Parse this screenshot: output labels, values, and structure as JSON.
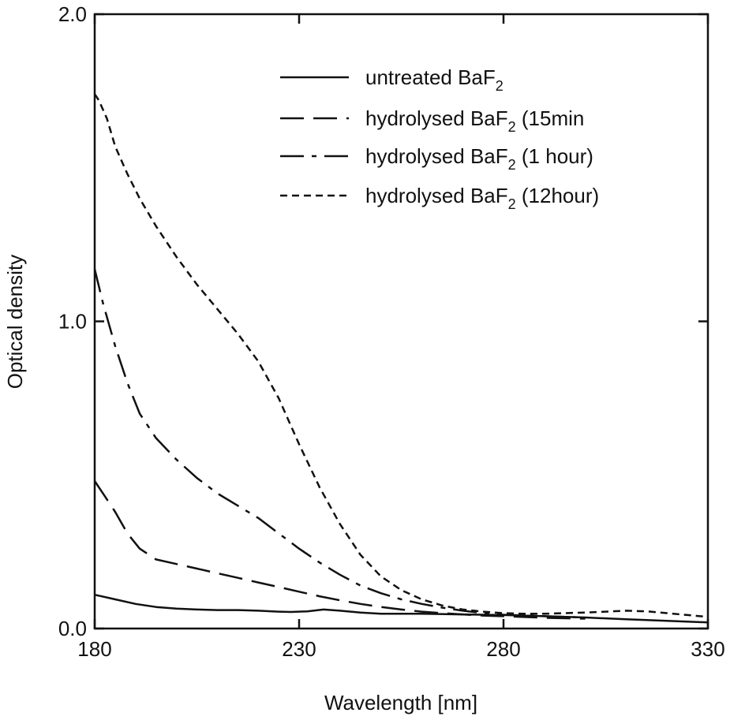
{
  "chart_data": {
    "type": "line",
    "xlabel": "Wavelength [nm]",
    "ylabel": "Optical density",
    "xlim": [
      180,
      330
    ],
    "ylim": [
      0.0,
      2.0
    ],
    "xticks": [
      "180",
      "230",
      "280",
      "330"
    ],
    "yticks": [
      "0.0",
      "1.0",
      "2.0"
    ],
    "grid": false,
    "legend_position": "top-right",
    "series": [
      {
        "name": "untreated BaF2",
        "legend_main": "untreated BaF",
        "legend_sub": "2",
        "legend_tail": "",
        "dash": "solid",
        "points": [
          [
            180,
            0.11
          ],
          [
            185,
            0.095
          ],
          [
            190,
            0.08
          ],
          [
            195,
            0.07
          ],
          [
            200,
            0.065
          ],
          [
            205,
            0.062
          ],
          [
            210,
            0.06
          ],
          [
            215,
            0.06
          ],
          [
            220,
            0.058
          ],
          [
            225,
            0.055
          ],
          [
            228,
            0.054
          ],
          [
            232,
            0.056
          ],
          [
            236,
            0.062
          ],
          [
            240,
            0.058
          ],
          [
            245,
            0.052
          ],
          [
            250,
            0.048
          ],
          [
            255,
            0.048
          ],
          [
            260,
            0.048
          ],
          [
            270,
            0.046
          ],
          [
            280,
            0.044
          ],
          [
            290,
            0.04
          ],
          [
            300,
            0.036
          ],
          [
            310,
            0.03
          ],
          [
            320,
            0.025
          ],
          [
            330,
            0.02
          ]
        ]
      },
      {
        "name": "hydrolysed BaF2 (15min",
        "legend_main": "hydrolysed BaF",
        "legend_sub": "2",
        "legend_tail": " (15min",
        "dash": "long-dash",
        "points": [
          [
            180,
            0.48
          ],
          [
            182,
            0.44
          ],
          [
            185,
            0.38
          ],
          [
            188,
            0.31
          ],
          [
            191,
            0.26
          ],
          [
            195,
            0.225
          ],
          [
            200,
            0.21
          ],
          [
            205,
            0.195
          ],
          [
            210,
            0.18
          ],
          [
            215,
            0.165
          ],
          [
            220,
            0.15
          ],
          [
            225,
            0.135
          ],
          [
            230,
            0.12
          ],
          [
            235,
            0.105
          ],
          [
            240,
            0.092
          ],
          [
            245,
            0.08
          ],
          [
            250,
            0.07
          ],
          [
            255,
            0.062
          ],
          [
            260,
            0.055
          ],
          [
            265,
            0.05
          ],
          [
            270,
            0.046
          ],
          [
            275,
            0.042
          ],
          [
            280,
            0.04
          ],
          [
            290,
            0.035
          ],
          [
            300,
            0.032
          ]
        ]
      },
      {
        "name": "hydrolysed BaF2 (1 hour)",
        "legend_main": "hydrolysed BaF",
        "legend_sub": "2",
        "legend_tail": " (1 hour)",
        "dash": "dash-dot",
        "points": [
          [
            180,
            1.17
          ],
          [
            182,
            1.06
          ],
          [
            185,
            0.92
          ],
          [
            188,
            0.8
          ],
          [
            191,
            0.7
          ],
          [
            195,
            0.62
          ],
          [
            200,
            0.55
          ],
          [
            205,
            0.49
          ],
          [
            210,
            0.44
          ],
          [
            215,
            0.4
          ],
          [
            220,
            0.36
          ],
          [
            225,
            0.31
          ],
          [
            230,
            0.26
          ],
          [
            235,
            0.215
          ],
          [
            240,
            0.175
          ],
          [
            245,
            0.14
          ],
          [
            250,
            0.115
          ],
          [
            255,
            0.095
          ],
          [
            260,
            0.08
          ],
          [
            265,
            0.068
          ],
          [
            270,
            0.058
          ],
          [
            275,
            0.05
          ],
          [
            280,
            0.045
          ],
          [
            290,
            0.04
          ],
          [
            300,
            0.036
          ]
        ]
      },
      {
        "name": "hydrolysed BaF2 (12hour)",
        "legend_main": "hydrolysed BaF",
        "legend_sub": "2",
        "legend_tail": " (12hour)",
        "dash": "short-dash",
        "points": [
          [
            180,
            1.74
          ],
          [
            181,
            1.72
          ],
          [
            183,
            1.66
          ],
          [
            185,
            1.57
          ],
          [
            188,
            1.48
          ],
          [
            191,
            1.4
          ],
          [
            195,
            1.31
          ],
          [
            200,
            1.21
          ],
          [
            205,
            1.12
          ],
          [
            210,
            1.04
          ],
          [
            215,
            0.96
          ],
          [
            220,
            0.87
          ],
          [
            225,
            0.75
          ],
          [
            230,
            0.6
          ],
          [
            235,
            0.46
          ],
          [
            240,
            0.34
          ],
          [
            245,
            0.24
          ],
          [
            250,
            0.17
          ],
          [
            255,
            0.125
          ],
          [
            260,
            0.095
          ],
          [
            265,
            0.075
          ],
          [
            270,
            0.062
          ],
          [
            275,
            0.055
          ],
          [
            280,
            0.05
          ],
          [
            285,
            0.048
          ],
          [
            290,
            0.048
          ],
          [
            295,
            0.05
          ],
          [
            300,
            0.052
          ],
          [
            305,
            0.055
          ],
          [
            310,
            0.058
          ],
          [
            315,
            0.056
          ],
          [
            320,
            0.05
          ],
          [
            325,
            0.044
          ],
          [
            330,
            0.038
          ]
        ]
      }
    ]
  }
}
